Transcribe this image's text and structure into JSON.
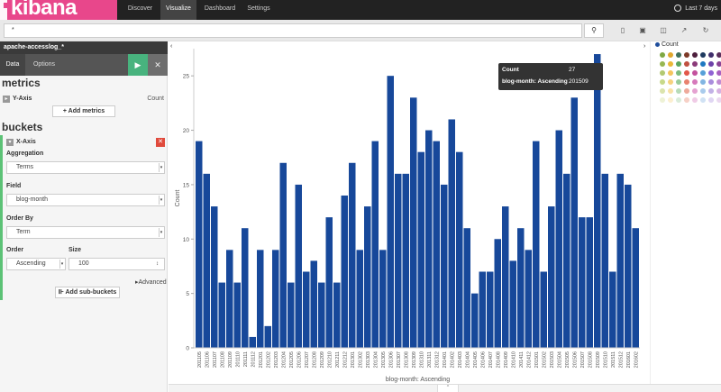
{
  "app": {
    "brand": "kibana"
  },
  "nav": {
    "tabs": [
      {
        "label": "Discover"
      },
      {
        "label": "Visualize"
      },
      {
        "label": "Dashboard"
      },
      {
        "label": "Settings"
      }
    ],
    "active_tab": "Visualize",
    "time_range": "Last 7 days"
  },
  "search": {
    "query": "*"
  },
  "panel": {
    "index_pattern": "apache-accesslog_*",
    "tabs": [
      {
        "label": "Data"
      },
      {
        "label": "Options"
      }
    ],
    "metrics_heading": "metrics",
    "yaxis_label": "Y-Axis",
    "yaxis_agg": "Count",
    "add_metrics": "Add metrics",
    "buckets_heading": "buckets",
    "xaxis_label": "X-Axis",
    "aggregation_label": "Aggregation",
    "aggregation_value": "Terms",
    "field_label": "Field",
    "field_value": "blog-month",
    "orderby_label": "Order By",
    "orderby_value": "Term",
    "order_label": "Order",
    "order_value": "Ascending",
    "size_label": "Size",
    "size_value": "100",
    "advanced": "Advanced",
    "add_sub_buckets": "Add sub-buckets"
  },
  "legend": {
    "title": "Count",
    "swatches": [
      "#7fa843",
      "#e0a72e",
      "#3e6f5c",
      "#7d3a27",
      "#4d1f3d",
      "#1e3a5f",
      "#3f2e6b",
      "#5a2e5a",
      "#97b751",
      "#eab839",
      "#5aa45e",
      "#c05140",
      "#8b3a7a",
      "#1f78c1",
      "#6d42a8",
      "#8a4394",
      "#b3c971",
      "#f4c55e",
      "#7dbb7e",
      "#e2584a",
      "#c4529e",
      "#57a0d8",
      "#8f63d3",
      "#a85fc0",
      "#c8d98a",
      "#f6d27e",
      "#99cc9a",
      "#e8826f",
      "#d679bb",
      "#82b5e2",
      "#a98ddc",
      "#c08bd2",
      "#dbe4ad",
      "#f9e1a5",
      "#b7dbb7",
      "#eeaa9b",
      "#e5a2d1",
      "#a9cbec",
      "#c2b1e6",
      "#d6b1e1",
      "#eef2d6",
      "#fcefcf",
      "#d9ecd9",
      "#f6d0c6",
      "#f0cbe6",
      "#d0e2f4",
      "#e0d6f3",
      "#ebd8f0"
    ]
  },
  "tooltip": {
    "count_label": "Count",
    "count_value": "27",
    "term_label": "blog-month: Ascending",
    "term_value": "201509"
  },
  "chart_data": {
    "type": "bar",
    "title": "",
    "xlabel": "blog-month: Ascending",
    "ylabel": "Count",
    "ylim": [
      0,
      27.5
    ],
    "yticks": [
      0,
      5,
      10,
      15,
      20,
      25
    ],
    "bar_color": "#17489a",
    "categories": [
      "201105",
      "201106",
      "201107",
      "201108",
      "201109",
      "201110",
      "201111",
      "201112",
      "201201",
      "201202",
      "201203",
      "201204",
      "201205",
      "201206",
      "201207",
      "201208",
      "201209",
      "201210",
      "201211",
      "201212",
      "201301",
      "201302",
      "201303",
      "201304",
      "201305",
      "201306",
      "201307",
      "201308",
      "201309",
      "201310",
      "201311",
      "201312",
      "201401",
      "201402",
      "201403",
      "201404",
      "201405",
      "201406",
      "201407",
      "201408",
      "201409",
      "201410",
      "201411",
      "201412",
      "201501",
      "201502",
      "201503",
      "201504",
      "201505",
      "201506",
      "201507",
      "201508",
      "201509",
      "201510",
      "201511",
      "201512",
      "201601",
      "201602"
    ],
    "series": [
      {
        "values": [
          19,
          16,
          13,
          6,
          9,
          6,
          11,
          1,
          9,
          2,
          9,
          17,
          6,
          15,
          7,
          8,
          6,
          12,
          6,
          14,
          17,
          9,
          13,
          19,
          9,
          25,
          16,
          16,
          23,
          18,
          20,
          19,
          15,
          21,
          18,
          11,
          5,
          7,
          7,
          10,
          13,
          8,
          11,
          9,
          19,
          7,
          13,
          20,
          16,
          23,
          12,
          12,
          27,
          16,
          7,
          16,
          15,
          11
        ]
      }
    ]
  }
}
